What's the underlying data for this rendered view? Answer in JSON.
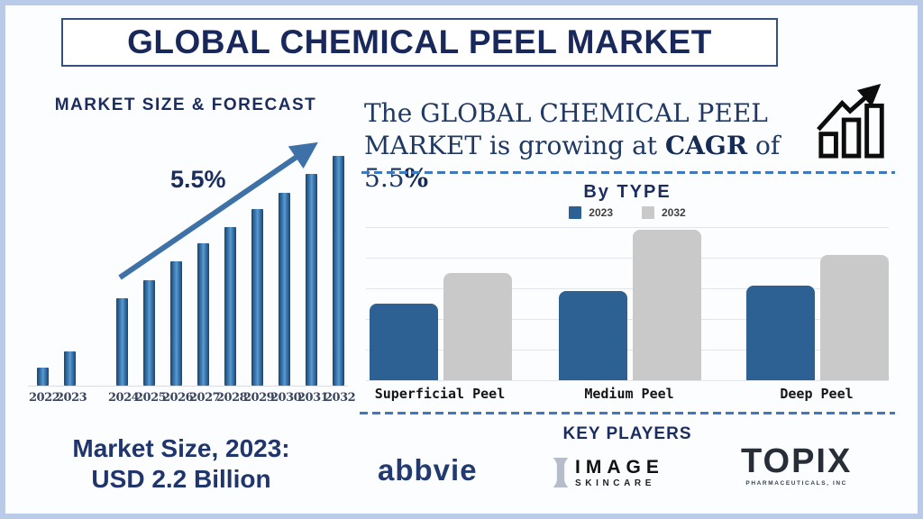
{
  "title": {
    "text": "GLOBAL CHEMICAL PEEL MARKET"
  },
  "forecast": {
    "heading": "MARKET SIZE & FORECAST",
    "growth_annotation": "5.5%",
    "market_size": {
      "line1": "Market Size, 2023:",
      "line2": "USD 2.2 Billion"
    }
  },
  "cagr_banner": {
    "line1": "The GLOBAL CHEMICAL PEEL",
    "line2_part1": "MARKET is growing at ",
    "line2_bold1": "CAGR",
    "line2_part2": " of 5.5",
    "line2_bold2": "%"
  },
  "by_type": {
    "heading": "By TYPE",
    "legend": [
      {
        "label": "2023",
        "color": "#2d6194"
      },
      {
        "label": "2032",
        "color": "#c9c9c9"
      }
    ]
  },
  "key_players": {
    "heading": "KEY PLAYERS",
    "abbvie": {
      "text": "abbvie"
    },
    "image_skincare": {
      "line1": "IMAGE",
      "line2": "SKINCARE"
    },
    "topix": {
      "line1": "TOPIX",
      "line2": "PHARMACEUTICALS, INC"
    }
  },
  "chart_data": [
    {
      "id": "market-size-forecast",
      "type": "bar",
      "title": "MARKET SIZE & FORECAST",
      "categories": [
        "2022",
        "2023",
        "2024",
        "2025",
        "2026",
        "2027",
        "2028",
        "2029",
        "2030",
        "2031",
        "2032"
      ],
      "values": [
        8,
        15,
        38,
        46,
        54,
        62,
        69,
        77,
        84,
        92,
        100
      ],
      "values_unit": "relative bar height, % of 2032 bar (y-axis unlabeled, stylized)",
      "annotation": "5.5%",
      "known_point": "2023 market size = USD 2.2 Billion",
      "bar_color": "#2d689f",
      "layout": "gap between 2023 and 2024 bars; upward trend arrow overlay"
    },
    {
      "id": "by-type",
      "type": "bar",
      "title": "By TYPE",
      "categories": [
        "Superficial Peel",
        "Medium Peel",
        "Deep Peel"
      ],
      "series": [
        {
          "name": "2023",
          "color": "#2d6194",
          "values": [
            2.5,
            2.9,
            3.1
          ]
        },
        {
          "name": "2032",
          "color": "#c9c9c9",
          "values": [
            3.5,
            4.9,
            4.1
          ]
        }
      ],
      "ylim": [
        0,
        5
      ],
      "gridlines": 6,
      "values_unit": "estimated from unlabeled gridlines (1 unit per gridline interval)",
      "legend_position": "top",
      "grid": true
    }
  ],
  "colors": {
    "navy_heading": "#1b2d5e",
    "title_navy": "#18285a",
    "serif_text": "#1f3864",
    "bar_blue_2023": "#2d6194",
    "bar_gray_2032": "#c9c9c9",
    "forecast_bar_blue": "#2d689f",
    "arrow_blue": "#3e71a8",
    "dashed_line_blue": "#3b7ac2",
    "frame_border": "#b9cbe8",
    "growth_icon_black": "#0d0d0d"
  }
}
